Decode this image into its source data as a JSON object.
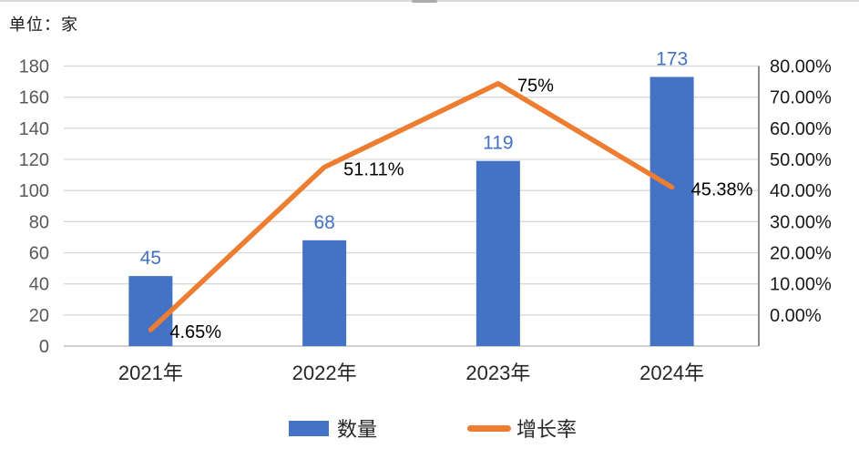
{
  "unit_label": "单位：家",
  "colors": {
    "bar": "#4472C4",
    "line": "#ED7D31",
    "bar_label": "#4472C4",
    "line_label": "#000000",
    "left_axis_label": "#595959",
    "right_axis_label": "#1a1a1a",
    "x_axis_label": "#262626",
    "gridline": "#d9d9d9",
    "bottom_axis": "#bfbfbf",
    "right_axis": "#7f7f7f"
  },
  "chart_data": {
    "type": "bar",
    "subtype": "combo-bar-line",
    "unit_label": "单位：家",
    "categories": [
      "2021年",
      "2022年",
      "2023年",
      "2024年"
    ],
    "series": [
      {
        "name": "数量",
        "type": "bar",
        "axis": "left",
        "values": [
          45,
          68,
          119,
          173
        ],
        "labels": [
          "45",
          "68",
          "119",
          "173"
        ],
        "color": "#4472C4"
      },
      {
        "name": "增长率",
        "type": "line",
        "axis": "right",
        "values": [
          4.65,
          51.11,
          75,
          45.38
        ],
        "labels": [
          "4.65%",
          "51.11%",
          "75%",
          "45.38%"
        ],
        "color": "#ED7D31"
      }
    ],
    "left_axis": {
      "min": 0,
      "max": 180,
      "step": 20,
      "ticks": [
        "180",
        "160",
        "140",
        "120",
        "100",
        "80",
        "60",
        "40",
        "20",
        "0"
      ]
    },
    "right_axis": {
      "min": 0,
      "max": 80,
      "step": 10,
      "ticks": [
        "80.00%",
        "70.00%",
        "60.00%",
        "50.00%",
        "40.00%",
        "30.00%",
        "20.00%",
        "10.00%",
        "0.00%"
      ]
    },
    "grid": true,
    "legend_position": "bottom",
    "legend": [
      {
        "label": "数量",
        "swatch": "bar"
      },
      {
        "label": "增长率",
        "swatch": "line"
      }
    ]
  }
}
